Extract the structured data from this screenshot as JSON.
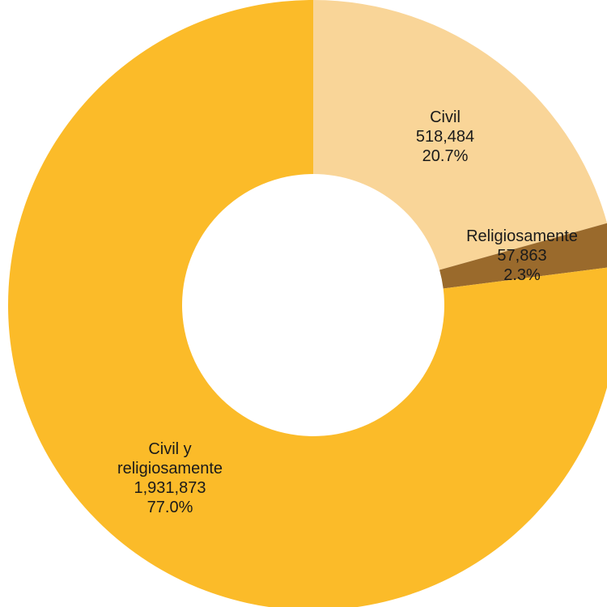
{
  "chart_data": {
    "type": "donut",
    "title": "",
    "categories": [
      "Civil",
      "Religiosamente",
      "Civil y religiosamente"
    ],
    "series": [
      {
        "values": [
          518484,
          57863,
          1931873
        ],
        "percentages": [
          20.7,
          2.3,
          77.0
        ],
        "colors": [
          "#F9D598",
          "#9A6A2C",
          "#FBBB29"
        ]
      }
    ],
    "labels": [
      {
        "lines": [
          "Civil",
          "518,484",
          "20.7%"
        ]
      },
      {
        "lines": [
          "Religiosamente",
          "57,863",
          "2.3%"
        ]
      },
      {
        "lines": [
          "Civil y",
          "religiosamente",
          "1,931,873",
          "77.0%"
        ]
      }
    ],
    "legend": "none"
  }
}
